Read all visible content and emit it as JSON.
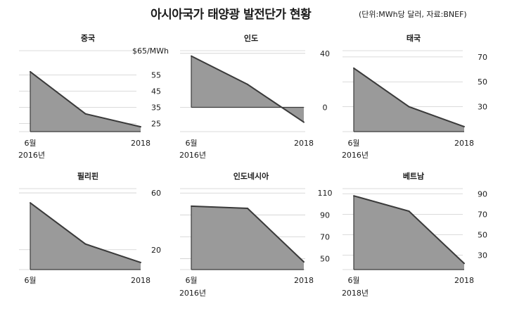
{
  "header": {
    "title": "아시아국가 태양광 발전단가 현황",
    "source": "(단위:MWh당 달러, 자료:BNEF)"
  },
  "colors": {
    "fill": "#9a9a9a",
    "line": "#3a3a3a",
    "grid": "#cfcfcf",
    "text": "#1a1a1a"
  },
  "chart_data": [
    {
      "type": "area",
      "title": "중국",
      "x": [
        0,
        0.5,
        1
      ],
      "x_tick_labels": [
        "6월",
        "2018"
      ],
      "x_start_year_label": "2016년",
      "values": [
        57,
        31,
        23
      ],
      "ylim": [
        20,
        70
      ],
      "y_ticks": [
        25,
        35,
        45,
        55
      ],
      "y_unit_label": "$65/MWh",
      "baseline": 20,
      "grid": true
    },
    {
      "type": "area",
      "title": "인도",
      "x": [
        0,
        0.5,
        1
      ],
      "x_tick_labels": [
        "6월",
        "2018"
      ],
      "x_start_year_label": "2016년",
      "values": [
        38,
        17,
        -11
      ],
      "ylim": [
        -18,
        42
      ],
      "y_ticks": [
        0,
        40
      ],
      "baseline": 0,
      "grid": true
    },
    {
      "type": "area",
      "title": "태국",
      "x": [
        0,
        0.5,
        1
      ],
      "x_tick_labels": [
        "6월",
        "2018"
      ],
      "x_start_year_label": "2016년",
      "values": [
        61,
        30,
        14
      ],
      "ylim": [
        10,
        75
      ],
      "y_ticks": [
        30,
        50,
        70
      ],
      "baseline": 10,
      "grid": true
    },
    {
      "type": "area",
      "title": "필리핀",
      "x": [
        0,
        0.5,
        1
      ],
      "x_tick_labels": [
        "6월",
        "2018"
      ],
      "x_start_year_label": "",
      "values": [
        53,
        24,
        11
      ],
      "ylim": [
        6,
        63
      ],
      "y_ticks": [
        20,
        60
      ],
      "baseline": 6,
      "grid": true
    },
    {
      "type": "area",
      "title": "인도네시아",
      "x": [
        0,
        0.5,
        1
      ],
      "x_tick_labels": [
        "6월",
        "2018"
      ],
      "x_start_year_label": "2016년",
      "values": [
        98,
        96,
        47
      ],
      "ylim": [
        40,
        114
      ],
      "y_ticks": [
        50,
        70,
        90,
        110
      ],
      "baseline": 40,
      "grid": true
    },
    {
      "type": "area",
      "title": "베트남",
      "x": [
        0,
        0.5,
        1
      ],
      "x_tick_labels": [
        "6월",
        "2018"
      ],
      "x_start_year_label": "2018년",
      "values": [
        88,
        73,
        22
      ],
      "ylim": [
        16,
        95
      ],
      "y_ticks": [
        30,
        50,
        70,
        90
      ],
      "baseline": 16,
      "grid": true
    }
  ]
}
